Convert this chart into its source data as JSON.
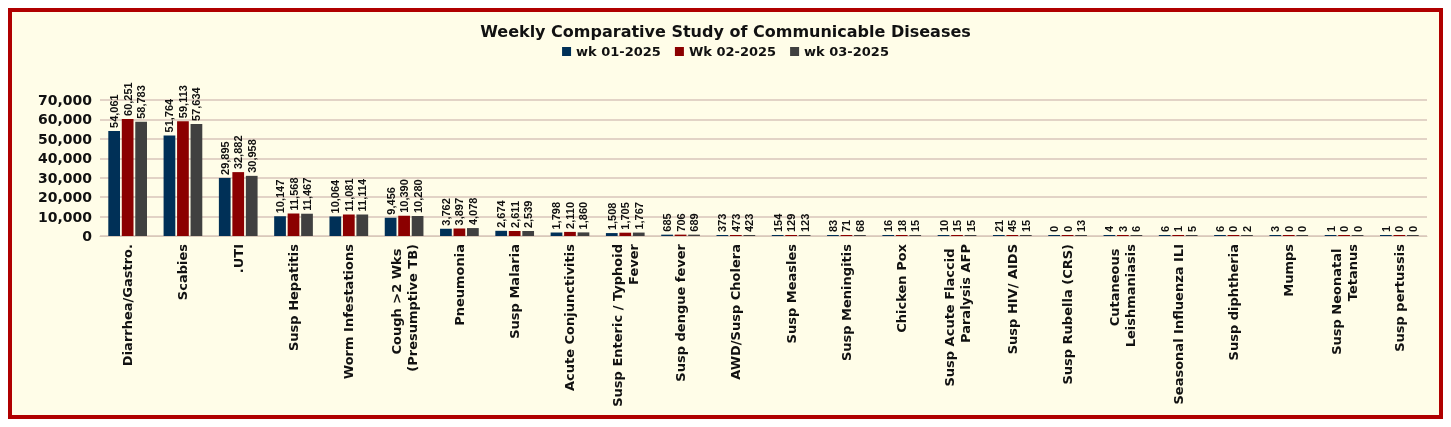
{
  "chart_data": {
    "type": "bar",
    "title": "Weekly Comparative Study of Communicable Diseases",
    "categories": [
      "Diarrhea/Gastro.",
      "Scabies",
      ".UTI",
      "Susp Hepatitis",
      "Worm Infestations",
      "Cough >2 Wks (Presumptive TB)",
      "Pneumonia",
      "Susp Malaria",
      "Acute Conjunctivitis",
      "Susp Enteric / Typhoid  Fever",
      "Susp dengue fever",
      "AWD/Susp Cholera",
      "Susp Measles",
      "Susp Meningitis",
      "Chicken Pox",
      "Susp Acute Flaccid Paralysis AFP",
      "Susp HIV/ AIDS",
      "Susp Rubella (CRS)",
      "Cutaneous Leishmaniasis",
      "Seasonal Influenza ILI",
      "Susp diphtheria",
      "Mumps",
      "Susp Neonatal Tetanus",
      "Susp pertussis"
    ],
    "series": [
      {
        "name": "wk 01-2025",
        "color": "#003057",
        "values": [
          54061,
          51764,
          29895,
          10147,
          10064,
          9456,
          3762,
          2674,
          1798,
          1508,
          685,
          373,
          154,
          83,
          16,
          10,
          21,
          0,
          4,
          6,
          6,
          3,
          1,
          1
        ],
        "value_labels": [
          "54,061",
          "51,764",
          "29,895",
          "10,147",
          "10,064",
          "9,456",
          "3,762",
          "2,674",
          "1,798",
          "1,508",
          "685",
          "373",
          "154",
          "83",
          "16",
          "10",
          "21",
          "0",
          "4",
          "6",
          "6",
          "3",
          "1",
          "1"
        ]
      },
      {
        "name": "Wk 02-2025",
        "color": "#8b0000",
        "values": [
          60251,
          59113,
          32882,
          11568,
          11081,
          10390,
          3897,
          2611,
          2110,
          1705,
          706,
          473,
          129,
          71,
          18,
          15,
          45,
          0,
          3,
          1,
          0,
          0,
          0,
          0
        ],
        "value_labels": [
          "60,251",
          "59,113",
          "32,882",
          "11,568",
          "11,081",
          "10,390",
          "3,897",
          "2,611",
          "2,110",
          "1,705",
          "706",
          "473",
          "129",
          "71",
          "18",
          "15",
          "45",
          "0",
          "3",
          "1",
          "0",
          "0",
          "0",
          "0"
        ]
      },
      {
        "name": "wk 03-2025",
        "color": "#404040",
        "values": [
          58783,
          57634,
          30958,
          11467,
          11114,
          10280,
          4078,
          2539,
          1860,
          1767,
          689,
          423,
          123,
          68,
          15,
          15,
          15,
          13,
          6,
          5,
          2,
          0,
          0,
          0
        ],
        "value_labels": [
          "58,783",
          "57,634",
          "30,958",
          "11,467",
          "11,114",
          "10,280",
          "4,078",
          "2,539",
          "1,860",
          "1,767",
          "689",
          "423",
          "123",
          "68",
          "15",
          "15",
          "15",
          "13",
          "6",
          "5",
          "2",
          "0",
          "0",
          "0"
        ]
      }
    ],
    "ylim": [
      0,
      70000
    ],
    "yticks": [
      0,
      {
        "value": 10000,
        "label": "10,000"
      },
      {
        "value": 20000,
        "label": "20,000"
      },
      {
        "value": 30000,
        "label": "30,000"
      },
      {
        "value": 40000,
        "label": "40,000"
      },
      {
        "value": 50000,
        "label": "50,000"
      },
      {
        "value": 60000,
        "label": "60,000"
      },
      {
        "value": 70000,
        "label": "70,000"
      }
    ],
    "grid": "y",
    "legend": "top"
  }
}
